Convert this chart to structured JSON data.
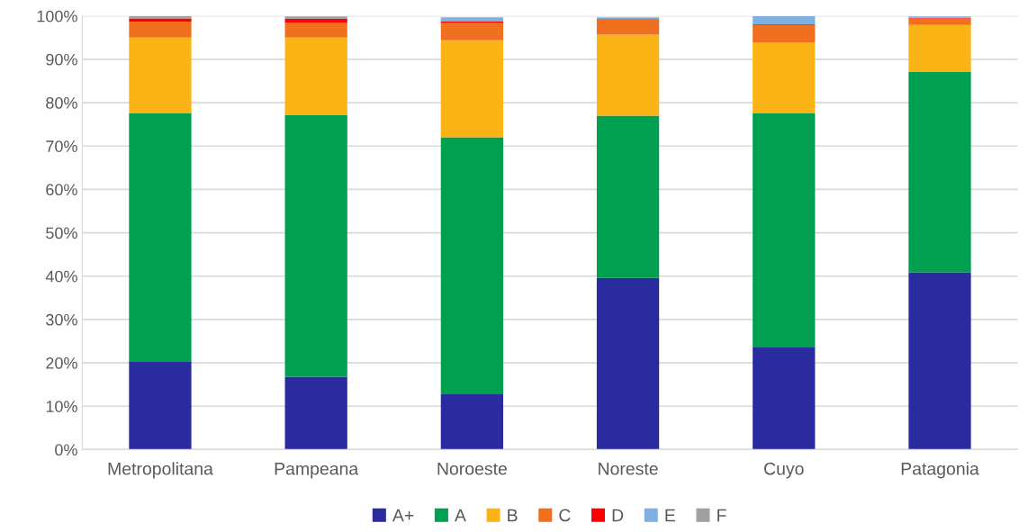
{
  "chart_data": {
    "type": "bar",
    "stacked": true,
    "categories": [
      "Metropolitana",
      "Pampeana",
      "Noroeste",
      "Noreste",
      "Cuyo",
      "Patagonia"
    ],
    "series": [
      {
        "name": "A+",
        "color": "#2b2ba0",
        "values": [
          20.4,
          16.8,
          12.9,
          39.6,
          23.7,
          40.9
        ]
      },
      {
        "name": "A",
        "color": "#00a050",
        "values": [
          57.1,
          60.4,
          59.1,
          37.4,
          53.9,
          46.3
        ]
      },
      {
        "name": "B",
        "color": "#fbb415",
        "values": [
          17.5,
          17.8,
          22.4,
          18.7,
          16.2,
          10.7
        ]
      },
      {
        "name": "C",
        "color": "#f07020",
        "values": [
          3.7,
          3.4,
          4.0,
          3.6,
          4.1,
          1.5
        ]
      },
      {
        "name": "D",
        "color": "#ff0000",
        "values": [
          0.7,
          0.9,
          0.4,
          0,
          0.2,
          0.2
        ]
      },
      {
        "name": "E",
        "color": "#80b0e0",
        "values": [
          0,
          null,
          0.9,
          0.4,
          1.9,
          0.3
        ]
      },
      {
        "name": "F",
        "color": "#a0a0a0",
        "values": [
          0.6,
          0.6,
          null,
          null,
          0,
          null
        ]
      }
    ],
    "ylim": [
      0,
      100
    ],
    "yticks": [
      {
        "value": 0,
        "label": "0%"
      },
      {
        "value": 10,
        "label": "10%"
      },
      {
        "value": 20,
        "label": "20%"
      },
      {
        "value": 30,
        "label": "30%"
      },
      {
        "value": 40,
        "label": "40%"
      },
      {
        "value": 50,
        "label": "50%"
      },
      {
        "value": 60,
        "label": "60%"
      },
      {
        "value": 70,
        "label": "70%"
      },
      {
        "value": 80,
        "label": "80%"
      },
      {
        "value": 90,
        "label": "90%"
      },
      {
        "value": 100,
        "label": "100%"
      }
    ],
    "grid": "y",
    "legend": "bottom"
  }
}
